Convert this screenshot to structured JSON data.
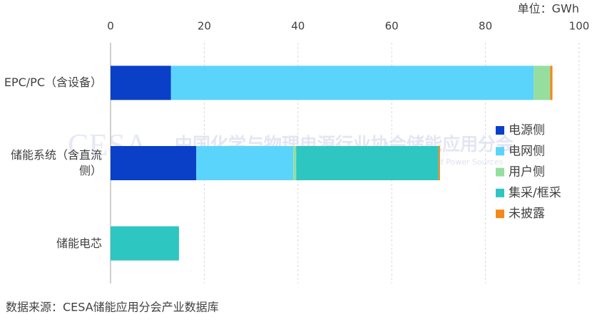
{
  "chart_data": {
    "type": "hbar_stacked",
    "unit_label": "单位：GWh",
    "source": "数据来源：CESA储能应用分会产业数据库",
    "watermark": {
      "logo": "CESA",
      "cn": "中国化学与物理电源行业协会储能应用分会",
      "en": "Energy Storage Application Branch of China Industrial Association of Power Sources"
    },
    "categories": [
      "EPC/PC（含设备）",
      "储能系统（含直流侧）",
      "储能电芯"
    ],
    "series": [
      {
        "name": "电源侧",
        "color": "#0a3fc8",
        "values": [
          12.9,
          18.3,
          0
        ]
      },
      {
        "name": "电网侧",
        "color": "#5bd4fb",
        "values": [
          77.4,
          20.7,
          0
        ]
      },
      {
        "name": "用户侧",
        "color": "#95dea0",
        "values": [
          3.5,
          0.6,
          0
        ]
      },
      {
        "name": "集采/框采",
        "color": "#2ec6c0",
        "values": [
          0,
          30.4,
          14.6
        ]
      },
      {
        "name": "未披露",
        "color": "#f08a1b",
        "values": [
          0.5,
          0.3,
          0
        ]
      }
    ],
    "xlim": [
      0,
      100
    ],
    "xticks": [
      0,
      20,
      40,
      60,
      80,
      100
    ],
    "grid": true,
    "legend": "right"
  }
}
